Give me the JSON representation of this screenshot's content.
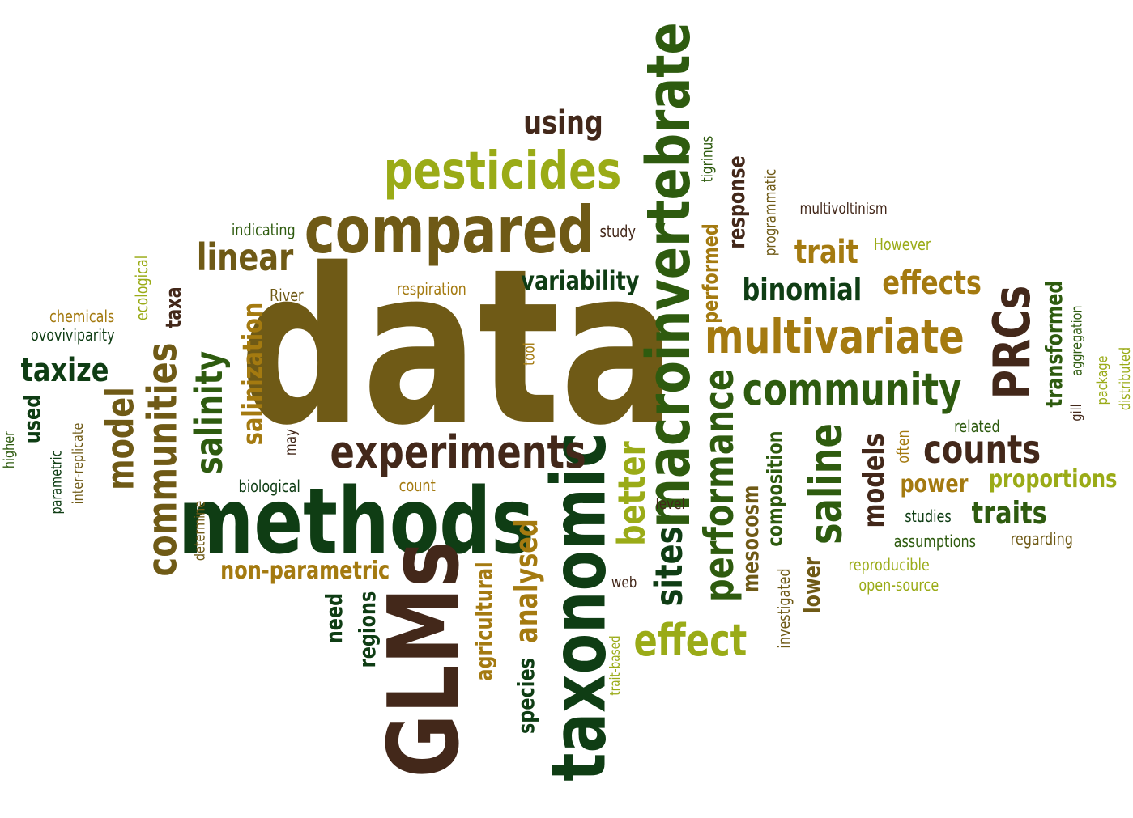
{
  "palette": {
    "olive": "#6f5a16",
    "dark_green": "#0f3d14",
    "brown": "#43281a",
    "lime": "#9aab17",
    "gold": "#a47a10",
    "forest": "#2e5b0f"
  },
  "words": [
    {
      "id": "data",
      "text": "data",
      "color": "olive"
    },
    {
      "id": "methods",
      "text": "methods",
      "color": "dark_green"
    },
    {
      "id": "GLMs",
      "text": "GLMs",
      "color": "brown"
    },
    {
      "id": "taxonomic",
      "text": "taxonomic",
      "color": "dark_green"
    },
    {
      "id": "compared",
      "text": "compared",
      "color": "olive"
    },
    {
      "id": "macroinvertebrate",
      "text": "macroinvertebrate",
      "color": "forest"
    },
    {
      "id": "pesticides",
      "text": "pesticides",
      "color": "lime"
    },
    {
      "id": "multivariate",
      "text": "multivariate",
      "color": "gold"
    },
    {
      "id": "experiments",
      "text": "experiments",
      "color": "brown"
    },
    {
      "id": "community",
      "text": "community",
      "color": "forest"
    },
    {
      "id": "PRCs",
      "text": "PRCs",
      "color": "brown"
    },
    {
      "id": "communities",
      "text": "communities",
      "color": "olive"
    },
    {
      "id": "performance",
      "text": "performance",
      "color": "forest"
    },
    {
      "id": "effect",
      "text": "effect",
      "color": "lime"
    },
    {
      "id": "saline",
      "text": "saline",
      "color": "forest"
    },
    {
      "id": "counts",
      "text": "counts",
      "color": "brown"
    },
    {
      "id": "better",
      "text": "better",
      "color": "lime"
    },
    {
      "id": "sites",
      "text": "sites",
      "color": "dark_green"
    },
    {
      "id": "salinity",
      "text": "salinity",
      "color": "forest"
    },
    {
      "id": "model",
      "text": "model",
      "color": "olive"
    },
    {
      "id": "linear",
      "text": "linear",
      "color": "olive"
    },
    {
      "id": "binomial",
      "text": "binomial",
      "color": "dark_green"
    },
    {
      "id": "effects",
      "text": "effects",
      "color": "gold"
    },
    {
      "id": "analysed",
      "text": "analysed",
      "color": "gold"
    },
    {
      "id": "using",
      "text": "using",
      "color": "brown"
    },
    {
      "id": "taxize",
      "text": "taxize",
      "color": "dark_green"
    },
    {
      "id": "traits",
      "text": "traits",
      "color": "forest"
    },
    {
      "id": "models",
      "text": "models",
      "color": "brown"
    },
    {
      "id": "salinization",
      "text": "salinization",
      "color": "gold"
    },
    {
      "id": "variability",
      "text": "variability",
      "color": "dark_green"
    },
    {
      "id": "trait",
      "text": "trait",
      "color": "gold"
    },
    {
      "id": "proportions",
      "text": "proportions",
      "color": "lime"
    },
    {
      "id": "non-parametric",
      "text": "non-parametric",
      "color": "gold"
    },
    {
      "id": "transformed",
      "text": "transformed",
      "color": "forest"
    },
    {
      "id": "agricultural",
      "text": "agricultural",
      "color": "gold"
    },
    {
      "id": "composition",
      "text": "composition",
      "color": "forest"
    },
    {
      "id": "power",
      "text": "power",
      "color": "gold"
    },
    {
      "id": "response",
      "text": "response",
      "color": "brown"
    },
    {
      "id": "mesocosm",
      "text": "mesocosm",
      "color": "olive"
    },
    {
      "id": "regions",
      "text": "regions",
      "color": "dark_green"
    },
    {
      "id": "species",
      "text": "species",
      "color": "dark_green"
    },
    {
      "id": "performed",
      "text": "performed",
      "color": "gold"
    },
    {
      "id": "lower",
      "text": "lower",
      "color": "olive"
    },
    {
      "id": "need",
      "text": "need",
      "color": "dark_green"
    },
    {
      "id": "used",
      "text": "used",
      "color": "dark_green"
    },
    {
      "id": "taxa",
      "text": "taxa",
      "color": "brown"
    },
    {
      "id": "investigated",
      "text": "investigated",
      "color": "olive"
    },
    {
      "id": "studies",
      "text": "studies",
      "color": "dark_green"
    },
    {
      "id": "assumptions",
      "text": "assumptions",
      "color": "forest"
    },
    {
      "id": "regarding",
      "text": "regarding",
      "color": "olive"
    },
    {
      "id": "reproducible",
      "text": "reproducible",
      "color": "lime"
    },
    {
      "id": "open-source",
      "text": "open-source",
      "color": "lime"
    },
    {
      "id": "related",
      "text": "related",
      "color": "forest"
    },
    {
      "id": "often",
      "text": "often",
      "color": "gold"
    },
    {
      "id": "multivoltinism",
      "text": "multivoltinism",
      "color": "brown"
    },
    {
      "id": "However",
      "text": "However",
      "color": "lime"
    },
    {
      "id": "programmatic",
      "text": "programmatic",
      "color": "olive"
    },
    {
      "id": "tigrinus",
      "text": "tigrinus",
      "color": "forest"
    },
    {
      "id": "study",
      "text": "study",
      "color": "brown"
    },
    {
      "id": "indicating",
      "text": "indicating",
      "color": "forest"
    },
    {
      "id": "respiration",
      "text": "respiration",
      "color": "gold"
    },
    {
      "id": "River",
      "text": "River",
      "color": "olive"
    },
    {
      "id": "chemicals",
      "text": "chemicals",
      "color": "gold"
    },
    {
      "id": "ovoviviparity",
      "text": "ovoviviparity",
      "color": "dark_green"
    },
    {
      "id": "ecological",
      "text": "ecological",
      "color": "lime"
    },
    {
      "id": "tool",
      "text": "tool",
      "color": "gold"
    },
    {
      "id": "may",
      "text": "may",
      "color": "brown"
    },
    {
      "id": "biological",
      "text": "biological",
      "color": "dark_green"
    },
    {
      "id": "count",
      "text": "count",
      "color": "gold"
    },
    {
      "id": "determine",
      "text": "determine",
      "color": "olive"
    },
    {
      "id": "level",
      "text": "level",
      "color": "brown"
    },
    {
      "id": "web",
      "text": "web",
      "color": "brown"
    },
    {
      "id": "trait-based",
      "text": "trait-based",
      "color": "lime"
    },
    {
      "id": "higher",
      "text": "higher",
      "color": "forest"
    },
    {
      "id": "parametric",
      "text": "parametric",
      "color": "dark_green"
    },
    {
      "id": "inter-replicate",
      "text": "inter-replicate",
      "color": "olive"
    },
    {
      "id": "aggregation",
      "text": "aggregation",
      "color": "forest"
    },
    {
      "id": "package",
      "text": "package",
      "color": "lime"
    },
    {
      "id": "gill",
      "text": "gill",
      "color": "brown"
    },
    {
      "id": "distributed",
      "text": "distributed",
      "color": "lime"
    }
  ]
}
